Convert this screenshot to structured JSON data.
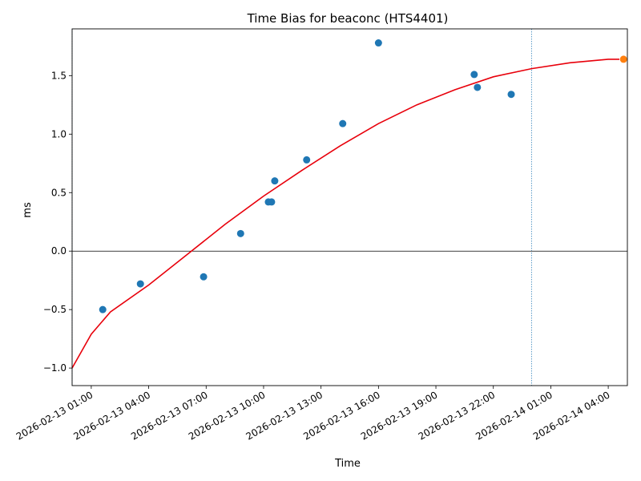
{
  "chart_data": {
    "type": "scatter",
    "title": "Time Bias for beaconc (HTS4401)",
    "xlabel": "Time",
    "ylabel": "ms",
    "xlim": [
      "2026-02-13T00:00",
      "2026-02-14T05:00"
    ],
    "ylim": [
      -1.15,
      1.9
    ],
    "x_ticks": [
      "2026-02-13 01:00",
      "2026-02-13 04:00",
      "2026-02-13 07:00",
      "2026-02-13 10:00",
      "2026-02-13 13:00",
      "2026-02-13 16:00",
      "2026-02-13 19:00",
      "2026-02-13 22:00",
      "2026-02-14 01:00",
      "2026-02-14 04:00"
    ],
    "y_ticks": [
      "−1.0",
      "−0.5",
      "0.0",
      "0.5",
      "1.0",
      "1.5"
    ],
    "points": [
      {
        "x": "2026-02-13T01:36",
        "y": -0.5
      },
      {
        "x": "2026-02-13T03:34",
        "y": -0.28
      },
      {
        "x": "2026-02-13T06:52",
        "y": -0.22
      },
      {
        "x": "2026-02-13T08:48",
        "y": 0.15
      },
      {
        "x": "2026-02-13T10:15",
        "y": 0.42
      },
      {
        "x": "2026-02-13T10:25",
        "y": 0.42
      },
      {
        "x": "2026-02-13T10:35",
        "y": 0.6
      },
      {
        "x": "2026-02-13T12:15",
        "y": 0.78
      },
      {
        "x": "2026-02-13T14:08",
        "y": 1.09
      },
      {
        "x": "2026-02-13T16:00",
        "y": 1.78
      },
      {
        "x": "2026-02-13T21:00",
        "y": 1.51
      },
      {
        "x": "2026-02-13T21:10",
        "y": 1.4
      },
      {
        "x": "2026-02-13T22:56",
        "y": 1.34
      }
    ],
    "highlight_point": {
      "x": "2026-02-14T04:48",
      "y": 1.64
    },
    "fit_curve": [
      {
        "x": "2026-02-13T00:00",
        "y": -1.0
      },
      {
        "x": "2026-02-13T01:00",
        "y": -0.71
      },
      {
        "x": "2026-02-13T02:00",
        "y": -0.52
      },
      {
        "x": "2026-02-13T04:00",
        "y": -0.29
      },
      {
        "x": "2026-02-13T06:00",
        "y": -0.03
      },
      {
        "x": "2026-02-13T08:00",
        "y": 0.23
      },
      {
        "x": "2026-02-13T10:00",
        "y": 0.47
      },
      {
        "x": "2026-02-13T12:00",
        "y": 0.69
      },
      {
        "x": "2026-02-13T14:00",
        "y": 0.9
      },
      {
        "x": "2026-02-13T16:00",
        "y": 1.09
      },
      {
        "x": "2026-02-13T18:00",
        "y": 1.25
      },
      {
        "x": "2026-02-13T20:00",
        "y": 1.38
      },
      {
        "x": "2026-02-13T22:00",
        "y": 1.49
      },
      {
        "x": "2026-02-14T00:00",
        "y": 1.56
      },
      {
        "x": "2026-02-14T02:00",
        "y": 1.61
      },
      {
        "x": "2026-02-14T04:00",
        "y": 1.64
      },
      {
        "x": "2026-02-14T04:35",
        "y": 1.64
      }
    ],
    "vlines": [
      "2026-02-13T00:00",
      "2026-02-14T00:00"
    ],
    "hline_y": 0,
    "colors": {
      "points": "#1f77b4",
      "highlight": "#ff7f0e",
      "fit": "#e8000b",
      "vlines": "#1f77b4",
      "zero_line": "#000000"
    },
    "grid": false,
    "legend": "none"
  }
}
